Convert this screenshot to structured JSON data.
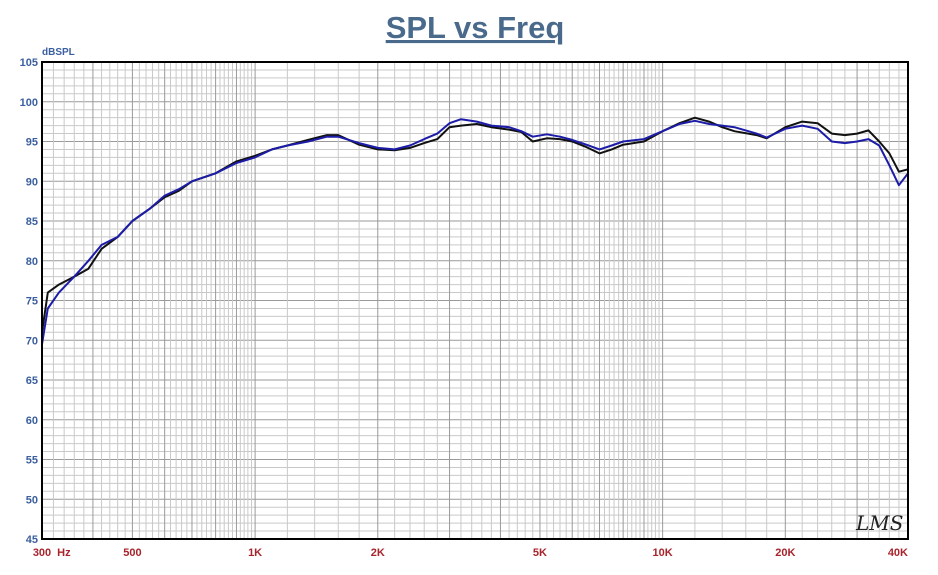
{
  "chart_data": {
    "type": "line",
    "title": "SPL vs Freq",
    "ylabel": "dBSPL",
    "xlabel": "",
    "x_scale": "log",
    "xlim": [
      300,
      40000
    ],
    "ylim": [
      45,
      105
    ],
    "y_ticks": [
      45,
      50,
      55,
      60,
      65,
      70,
      75,
      80,
      85,
      90,
      95,
      100,
      105
    ],
    "x_tick_labels": [
      {
        "value": 300,
        "label": "300"
      },
      {
        "value": 500,
        "label": "500"
      },
      {
        "value": 1000,
        "label": "1K"
      },
      {
        "value": 2000,
        "label": "2K"
      },
      {
        "value": 5000,
        "label": "5K"
      },
      {
        "value": 10000,
        "label": "10K"
      },
      {
        "value": 20000,
        "label": "20K"
      },
      {
        "value": 40000,
        "label": "40K"
      }
    ],
    "x_unit": "Hz",
    "grid": true,
    "watermark": "LMS",
    "series": [
      {
        "color": "#111111",
        "points": [
          [
            300,
            71
          ],
          [
            310,
            76
          ],
          [
            330,
            77
          ],
          [
            360,
            78
          ],
          [
            390,
            79
          ],
          [
            420,
            81.5
          ],
          [
            460,
            83
          ],
          [
            500,
            85
          ],
          [
            550,
            86.5
          ],
          [
            600,
            88
          ],
          [
            650,
            88.8
          ],
          [
            700,
            90
          ],
          [
            800,
            91
          ],
          [
            900,
            92.5
          ],
          [
            1000,
            93.2
          ],
          [
            1100,
            94
          ],
          [
            1200,
            94.5
          ],
          [
            1350,
            95.2
          ],
          [
            1500,
            95.8
          ],
          [
            1600,
            95.8
          ],
          [
            1800,
            94.6
          ],
          [
            2000,
            94
          ],
          [
            2200,
            93.9
          ],
          [
            2400,
            94.2
          ],
          [
            2600,
            94.8
          ],
          [
            2800,
            95.3
          ],
          [
            3000,
            96.8
          ],
          [
            3200,
            97
          ],
          [
            3500,
            97.2
          ],
          [
            3800,
            96.8
          ],
          [
            4200,
            96.5
          ],
          [
            4500,
            96.2
          ],
          [
            4800,
            95
          ],
          [
            5200,
            95.4
          ],
          [
            5600,
            95.3
          ],
          [
            6000,
            95
          ],
          [
            6500,
            94.3
          ],
          [
            7000,
            93.5
          ],
          [
            7500,
            94
          ],
          [
            8000,
            94.6
          ],
          [
            9000,
            95
          ],
          [
            10000,
            96.3
          ],
          [
            11000,
            97.3
          ],
          [
            12000,
            98
          ],
          [
            13000,
            97.5
          ],
          [
            14000,
            96.8
          ],
          [
            15000,
            96.3
          ],
          [
            17000,
            95.8
          ],
          [
            18000,
            95.4
          ],
          [
            20000,
            96.8
          ],
          [
            22000,
            97.5
          ],
          [
            24000,
            97.3
          ],
          [
            26000,
            96
          ],
          [
            28000,
            95.8
          ],
          [
            30000,
            96
          ],
          [
            32000,
            96.4
          ],
          [
            34000,
            95
          ],
          [
            36000,
            93.5
          ],
          [
            38000,
            91.2
          ],
          [
            40000,
            91.5
          ]
        ]
      },
      {
        "color": "#1c1ca8",
        "points": [
          [
            300,
            69.5
          ],
          [
            310,
            74
          ],
          [
            330,
            76
          ],
          [
            360,
            78
          ],
          [
            390,
            80
          ],
          [
            420,
            82
          ],
          [
            460,
            83
          ],
          [
            500,
            85
          ],
          [
            550,
            86.5
          ],
          [
            600,
            88.2
          ],
          [
            650,
            89
          ],
          [
            700,
            90
          ],
          [
            800,
            91
          ],
          [
            900,
            92.3
          ],
          [
            1000,
            93
          ],
          [
            1100,
            94
          ],
          [
            1200,
            94.5
          ],
          [
            1350,
            95
          ],
          [
            1500,
            95.6
          ],
          [
            1600,
            95.6
          ],
          [
            1800,
            94.8
          ],
          [
            2000,
            94.2
          ],
          [
            2200,
            94
          ],
          [
            2400,
            94.5
          ],
          [
            2600,
            95.3
          ],
          [
            2800,
            96
          ],
          [
            3000,
            97.3
          ],
          [
            3200,
            97.8
          ],
          [
            3500,
            97.5
          ],
          [
            3800,
            97
          ],
          [
            4200,
            96.8
          ],
          [
            4500,
            96.3
          ],
          [
            4800,
            95.6
          ],
          [
            5200,
            95.9
          ],
          [
            5600,
            95.6
          ],
          [
            6000,
            95.2
          ],
          [
            6500,
            94.6
          ],
          [
            7000,
            94
          ],
          [
            7500,
            94.5
          ],
          [
            8000,
            95
          ],
          [
            9000,
            95.3
          ],
          [
            10000,
            96.3
          ],
          [
            11000,
            97.2
          ],
          [
            12000,
            97.6
          ],
          [
            13000,
            97.2
          ],
          [
            14000,
            97
          ],
          [
            15000,
            96.8
          ],
          [
            17000,
            96
          ],
          [
            18000,
            95.5
          ],
          [
            20000,
            96.6
          ],
          [
            22000,
            97
          ],
          [
            24000,
            96.6
          ],
          [
            26000,
            95
          ],
          [
            28000,
            94.8
          ],
          [
            30000,
            95
          ],
          [
            32000,
            95.3
          ],
          [
            34000,
            94.5
          ],
          [
            36000,
            92
          ],
          [
            38000,
            89.5
          ],
          [
            40000,
            91
          ]
        ]
      }
    ]
  }
}
